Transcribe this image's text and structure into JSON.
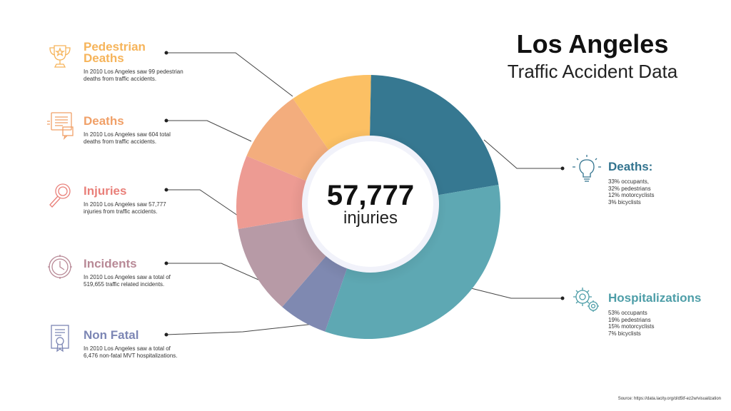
{
  "title": {
    "main": "Los Angeles",
    "sub": "Traffic Accident Data"
  },
  "center": {
    "number": "57,777",
    "label": "injuries"
  },
  "left_items": [
    {
      "title_line1": "Pedestrian",
      "title_line2": "Deaths",
      "text": "In 2010 Los Angeles saw 99 pedestrian deaths from traffic accidents.",
      "color": "#f6b45a",
      "icon": "trophy-icon"
    },
    {
      "title_line1": "Deaths",
      "title_line2": "",
      "text": "In 2010 Los Angeles saw 604 total deaths from traffic accidents.",
      "color": "#f0a068",
      "icon": "document-chat-icon"
    },
    {
      "title_line1": "Injuries",
      "title_line2": "",
      "text": "In 2010 Los Angeles saw 57,777 injuries from traffic accidents.",
      "color": "#e9807a",
      "icon": "magnifier-icon"
    },
    {
      "title_line1": "Incidents",
      "title_line2": "",
      "text": "In 2010 Los Angeles saw a total of 519,655 traffic related incidents.",
      "color": "#b88996",
      "icon": "clock-icon"
    },
    {
      "title_line1": "Non Fatal",
      "title_line2": "",
      "text": "In 2010 Los Angeles saw a total of 6,476 non-fatal MVT hospitalizations.",
      "color": "#7c86b4",
      "icon": "certificate-icon"
    }
  ],
  "right_items": [
    {
      "title": "Deaths:",
      "lines": [
        "33% occupants,",
        "32% pedestrians",
        "12% motorcyclists",
        "3% bicyclists"
      ],
      "color": "#33748f",
      "icon": "lightbulb-icon"
    },
    {
      "title": "Hospitalizations",
      "lines": [
        "53% occupants",
        "19% pedestrians",
        "15% motorcyclists",
        "7% bicyclists"
      ],
      "color": "#4e9ea8",
      "icon": "gears-icon"
    }
  ],
  "source": "Source: https://data.lacity.org/d/d5tf-ez2w/visualization",
  "chart_data": {
    "type": "pie",
    "donut": true,
    "categories": [
      "Deaths (right)",
      "Hospitalizations",
      "Non Fatal",
      "Incidents",
      "Injuries",
      "Deaths (left)",
      "Pedestrian Deaths"
    ],
    "values": [
      22,
      33,
      6,
      11,
      9,
      9,
      10
    ],
    "colors": [
      "#367891",
      "#5ea8b3",
      "#7f89b1",
      "#b79aa6",
      "#ed9b93",
      "#f3ad7d",
      "#fcc064"
    ],
    "title": "",
    "legend": "none"
  }
}
